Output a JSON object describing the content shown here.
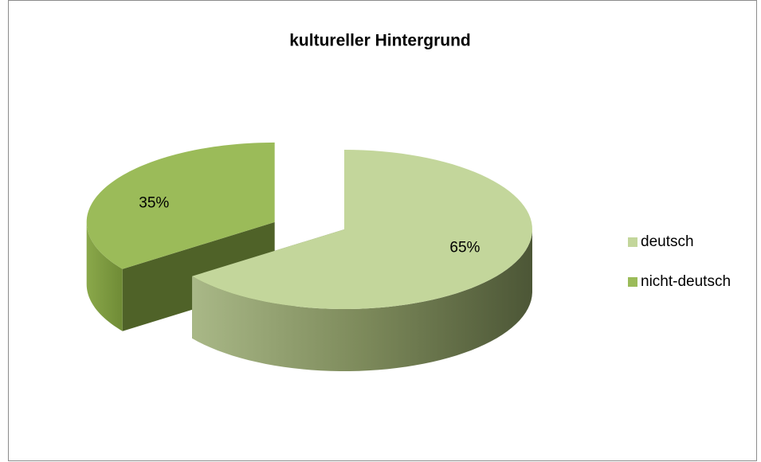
{
  "chart_data": {
    "type": "pie",
    "title": "kultureller Hintergrund",
    "categories": [
      "deutsch",
      "nicht-deutsch"
    ],
    "values": [
      65,
      35
    ],
    "value_labels": [
      "65%",
      "35%"
    ],
    "colors": [
      "#c3d69b",
      "#9bbb59"
    ],
    "legend": "right"
  }
}
